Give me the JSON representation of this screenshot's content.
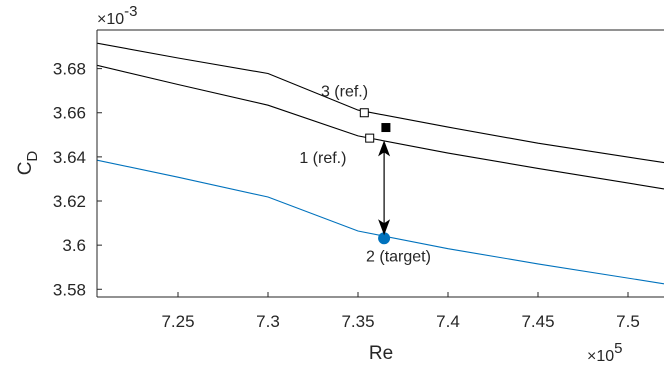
{
  "chart_data": {
    "type": "line",
    "xlabel": "Re",
    "ylabel": "C",
    "ylabel_sub": "D",
    "x_multiplier": {
      "base": "×10",
      "exp": "5"
    },
    "y_multiplier": {
      "base": "×10",
      "exp": "-3"
    },
    "xlim": [
      7.205,
      7.52
    ],
    "ylim": [
      3.5765,
      3.6975
    ],
    "x_ticks": [
      {
        "value": 7.25,
        "label": "7.25"
      },
      {
        "value": 7.3,
        "label": "7.3"
      },
      {
        "value": 7.35,
        "label": "7.35"
      },
      {
        "value": 7.4,
        "label": "7.4"
      },
      {
        "value": 7.45,
        "label": "7.45"
      },
      {
        "value": 7.5,
        "label": "7.5"
      }
    ],
    "y_ticks": [
      {
        "value": 3.58,
        "label": "3.58"
      },
      {
        "value": 3.6,
        "label": "3.6"
      },
      {
        "value": 3.62,
        "label": "3.62"
      },
      {
        "value": 3.64,
        "label": "3.64"
      },
      {
        "value": 3.66,
        "label": "3.66"
      },
      {
        "value": 3.68,
        "label": "3.68"
      }
    ],
    "grid": false,
    "series": [
      {
        "color": "#000000",
        "x": [
          7.205,
          7.25,
          7.3,
          7.35,
          7.4,
          7.45,
          7.52
        ],
        "y": [
          3.6915,
          3.6848,
          3.6778,
          3.6612,
          3.6535,
          3.6462,
          3.6374
        ]
      },
      {
        "color": "#000000",
        "x": [
          7.205,
          7.25,
          7.3,
          7.35,
          7.4,
          7.45,
          7.52
        ],
        "y": [
          3.6815,
          3.6728,
          3.6634,
          3.6495,
          3.6417,
          3.6348,
          3.6255
        ]
      },
      {
        "color": "#0072BD",
        "x": [
          7.205,
          7.25,
          7.3,
          7.35,
          7.4,
          7.45,
          7.52
        ],
        "y": [
          3.6385,
          3.6308,
          3.6218,
          3.6064,
          3.5984,
          3.5915,
          3.5825
        ]
      }
    ],
    "markers": [
      {
        "x": 7.3535,
        "y": 3.66,
        "shape": "open-square",
        "color": "#000000"
      },
      {
        "x": 7.3565,
        "y": 3.6485,
        "shape": "open-square",
        "color": "#000000"
      },
      {
        "x": 7.3655,
        "y": 3.6533,
        "shape": "filled-square",
        "color": "#000000"
      },
      {
        "x": 7.3645,
        "y": 3.6031,
        "shape": "filled-circle",
        "color": "#0072BD"
      }
    ],
    "arrow": {
      "x": 7.3645,
      "y_from": 3.6475,
      "y_to": 3.6045,
      "double": true
    },
    "annotations": [
      {
        "text": "3 (ref.)",
        "x": 7.3425,
        "y": 3.6674
      },
      {
        "text": "1 (ref.)",
        "x": 7.3305,
        "y": 3.6372
      },
      {
        "text": "2 (target)",
        "x": 7.3725,
        "y": 3.5926
      }
    ]
  }
}
